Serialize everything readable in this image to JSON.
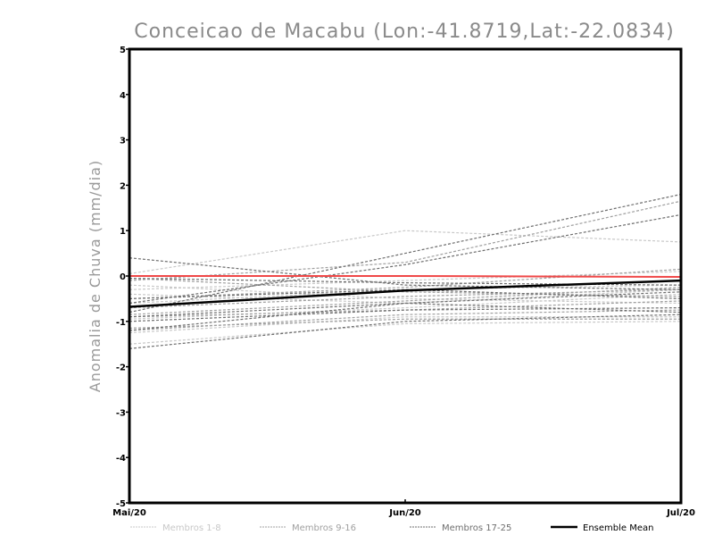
{
  "chart_data": {
    "type": "line",
    "title": "Conceicao de Macabu (Lon:-41.8719,Lat:-22.0834)",
    "xlabel": "",
    "ylabel": "Anomalia de Chuva (mm/dia)",
    "x": [
      "Mai/20",
      "Jun/20",
      "Jul/20"
    ],
    "ylim": [
      -5,
      5
    ],
    "yticks": [
      "-5",
      "-4",
      "-3",
      "-2",
      "-1",
      "0",
      "1",
      "2",
      "3",
      "4",
      "5"
    ],
    "grid": false,
    "legend_position": "bottom",
    "groups": [
      {
        "name": "Membros 1-8",
        "color": "#c8c8c8",
        "members": [
          [
            0.05,
            1.0,
            0.75
          ],
          [
            -0.3,
            -0.1,
            0.1
          ],
          [
            -1.5,
            -1.05,
            -1.0
          ],
          [
            -0.2,
            -0.5,
            -0.6
          ],
          [
            -0.95,
            -0.7,
            -0.4
          ],
          [
            -0.6,
            -0.3,
            -0.2
          ],
          [
            -1.25,
            -0.9,
            -0.9
          ],
          [
            -0.4,
            -0.6,
            -0.3
          ]
        ]
      },
      {
        "name": "Membros 9-16",
        "color": "#a0a0a0",
        "members": [
          [
            -0.1,
            0.3,
            1.65
          ],
          [
            -0.85,
            -0.55,
            -0.25
          ],
          [
            -1.2,
            -0.85,
            -0.75
          ],
          [
            -0.5,
            -0.25,
            0.15
          ],
          [
            -0.05,
            -0.35,
            -0.45
          ],
          [
            -0.9,
            -0.75,
            -0.55
          ],
          [
            -0.7,
            -0.45,
            -0.3
          ],
          [
            -1.15,
            -0.95,
            -0.95
          ]
        ]
      },
      {
        "name": "Membros 17-25",
        "color": "#6e6e6e",
        "members": [
          [
            0.4,
            -0.2,
            -0.3
          ],
          [
            -0.8,
            0.5,
            1.8
          ],
          [
            -0.6,
            0.25,
            1.35
          ],
          [
            -1.6,
            -1.0,
            -0.85
          ],
          [
            -1.2,
            -0.6,
            -0.35
          ],
          [
            -0.05,
            -0.15,
            -0.2
          ],
          [
            -0.9,
            -0.6,
            -0.8
          ],
          [
            -0.5,
            -0.3,
            -0.5
          ],
          [
            -1.0,
            -0.75,
            -0.7
          ]
        ]
      }
    ],
    "ensemble_mean": {
      "name": "Ensemble Mean",
      "color": "#000000",
      "values": [
        -0.68,
        -0.32,
        -0.1
      ]
    },
    "reference_line": {
      "color": "#f04848",
      "values": [
        0.0,
        0.0,
        -0.02
      ]
    }
  }
}
